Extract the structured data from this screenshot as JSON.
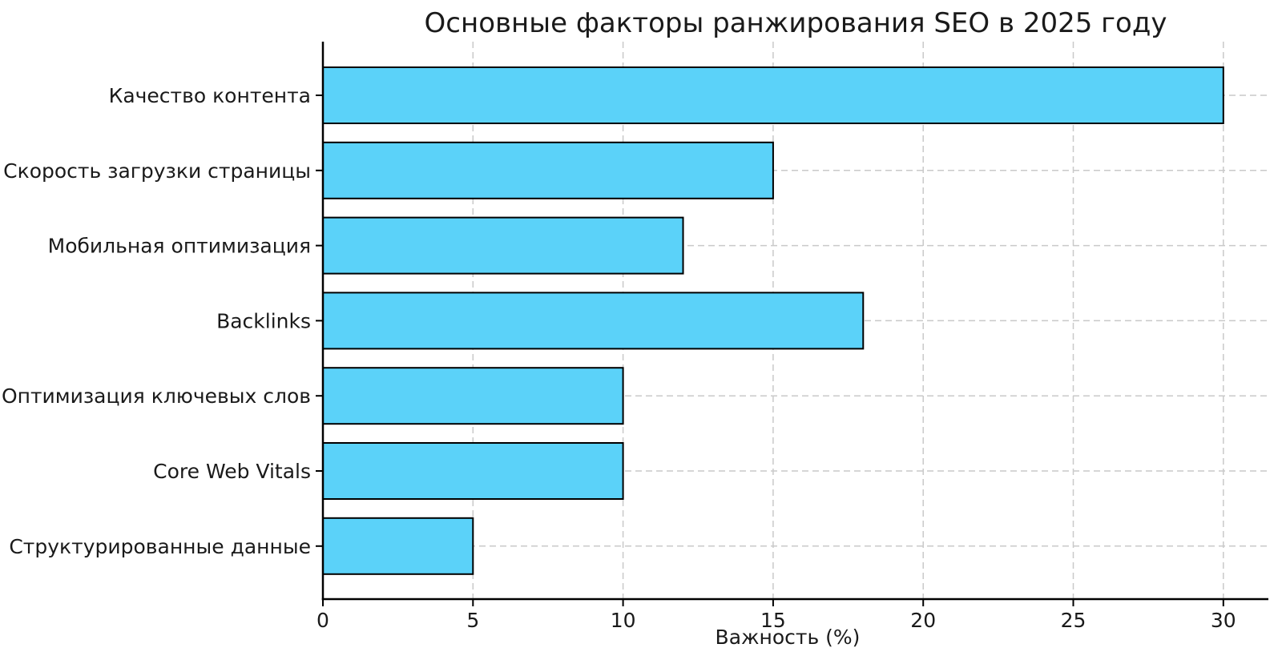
{
  "chart_data": {
    "type": "bar",
    "orientation": "horizontal",
    "title": "Основные факторы ранжирования SEO в 2025 году",
    "xlabel": "Важность (%)",
    "ylabel": "",
    "categories": [
      "Качество контента",
      "Скорость загрузки страницы",
      "Мобильная оптимизация",
      "Backlinks",
      "Оптимизация ключевых слов",
      "Core Web Vitals",
      "Структурированные данные"
    ],
    "values": [
      30,
      15,
      12,
      18,
      10,
      10,
      5
    ],
    "xlim": [
      0,
      31.5
    ],
    "xticks": [
      0,
      5,
      10,
      15,
      20,
      25,
      30
    ],
    "grid": "dashed-both-axes",
    "legend": "none",
    "colors": {
      "bar_fill": "#5BD2F9",
      "bar_edge": "#000000",
      "grid_line": "#c9c9c9",
      "spine": "#000000",
      "text": "#1a1a1a",
      "background": "#ffffff"
    }
  }
}
